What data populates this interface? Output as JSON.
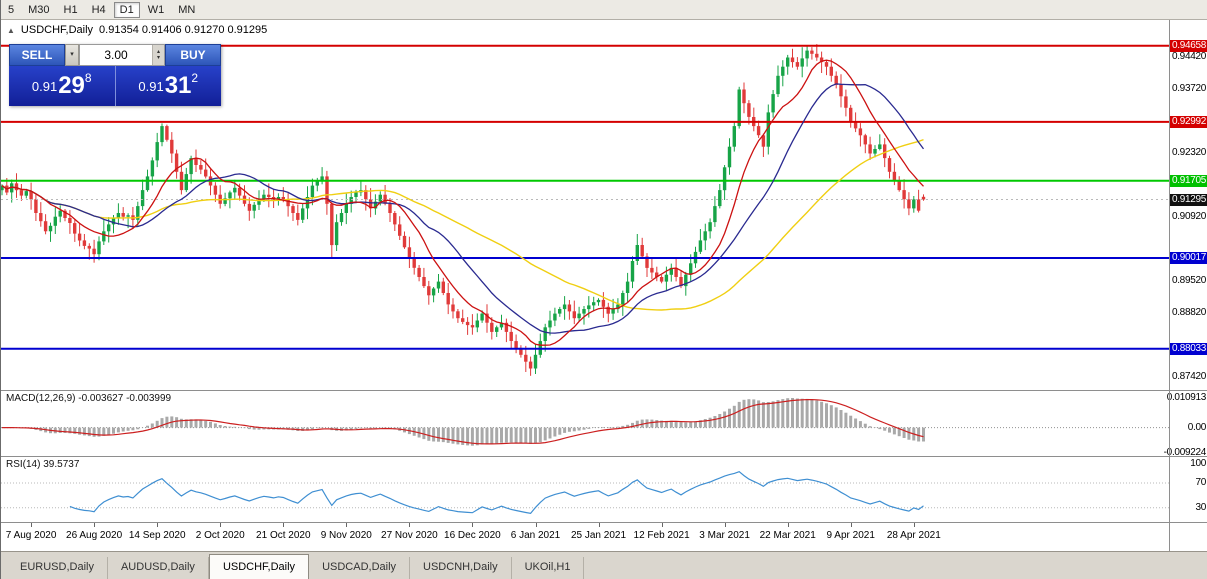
{
  "toolbar": {
    "timeframes": [
      {
        "label": "5",
        "name": "m5",
        "active": false
      },
      {
        "label": "M30",
        "name": "m30",
        "active": false
      },
      {
        "label": "H1",
        "name": "h1",
        "active": false
      },
      {
        "label": "H4",
        "name": "h4",
        "active": false
      },
      {
        "label": "D1",
        "name": "d1",
        "active": true
      },
      {
        "label": "W1",
        "name": "w1",
        "active": false
      },
      {
        "label": "MN",
        "name": "mn",
        "active": false
      }
    ]
  },
  "chart_header": {
    "symbol": "USDCHF,Daily",
    "ohlc": "0.91354 0.91406 0.91270 0.91295"
  },
  "icons": {
    "one_click_toggle": "▲",
    "dropdown": "▾",
    "spinner_up": "▴",
    "spinner_down": "▾"
  },
  "one_click": {
    "sell_label": "SELL",
    "buy_label": "BUY",
    "volume": "3.00",
    "sell_price": {
      "prefix": "0.91",
      "big": "29",
      "sup": "8"
    },
    "buy_price": {
      "prefix": "0.91",
      "big": "31",
      "sup": "2"
    }
  },
  "indicators": {
    "macd": {
      "label": "MACD(12,26,9) -0.003627 -0.003999",
      "axis_labels": [
        {
          "text": "0.010913",
          "value": 0.010913
        },
        {
          "text": "0.00",
          "value": 0
        },
        {
          "text": "-0.009224",
          "value": -0.009224
        }
      ]
    },
    "rsi": {
      "label": "RSI(14) 39.5737",
      "axis_labels": [
        {
          "text": "100",
          "value": 100
        },
        {
          "text": "70",
          "value": 70
        },
        {
          "text": "30",
          "value": 30
        }
      ],
      "levels": [
        70,
        30
      ]
    }
  },
  "y_axis": {
    "ticks": [
      {
        "text": "0.94420",
        "value": 0.9442
      },
      {
        "text": "0.93720",
        "value": 0.9372
      },
      {
        "text": "0.92320",
        "value": 0.9232
      },
      {
        "text": "0.90920",
        "value": 0.9092
      },
      {
        "text": "0.89520",
        "value": 0.8952
      },
      {
        "text": "0.88820",
        "value": 0.8882
      },
      {
        "text": "0.87420",
        "value": 0.8742
      }
    ],
    "badges": [
      {
        "text": "0.94658",
        "value": 0.94658,
        "color": "#d40000",
        "current": false
      },
      {
        "text": "0.92992",
        "value": 0.92992,
        "color": "#d40000",
        "current": false
      },
      {
        "text": "0.91705",
        "value": 0.91705,
        "color": "#00c000",
        "current": false
      },
      {
        "text": "0.91295",
        "value": 0.91295,
        "color": "#111111",
        "current": true
      },
      {
        "text": "0.90017",
        "value": 0.90017,
        "color": "#0000d0",
        "current": false
      },
      {
        "text": "0.88033",
        "value": 0.88033,
        "color": "#0000d0",
        "current": false
      }
    ]
  },
  "x_axis": [
    {
      "text": "7 Aug 2020",
      "bar": 6
    },
    {
      "text": "26 Aug 2020",
      "bar": 19
    },
    {
      "text": "14 Sep 2020",
      "bar": 32
    },
    {
      "text": "2 Oct 2020",
      "bar": 45
    },
    {
      "text": "21 Oct 2020",
      "bar": 58
    },
    {
      "text": "9 Nov 2020",
      "bar": 71
    },
    {
      "text": "27 Nov 2020",
      "bar": 84
    },
    {
      "text": "16 Dec 2020",
      "bar": 97
    },
    {
      "text": "6 Jan 2021",
      "bar": 110
    },
    {
      "text": "25 Jan 2021",
      "bar": 123
    },
    {
      "text": "12 Feb 2021",
      "bar": 136
    },
    {
      "text": "3 Mar 2021",
      "bar": 149
    },
    {
      "text": "22 Mar 2021",
      "bar": 162
    },
    {
      "text": "9 Apr 2021",
      "bar": 175
    },
    {
      "text": "28 Apr 2021",
      "bar": 188
    }
  ],
  "tabs": [
    {
      "label": "EURUSD,Daily",
      "active": false
    },
    {
      "label": "AUDUSD,Daily",
      "active": false
    },
    {
      "label": "USDCHF,Daily",
      "active": true
    },
    {
      "label": "USDCAD,Daily",
      "active": false
    },
    {
      "label": "USDCNH,Daily",
      "active": false
    },
    {
      "label": "UKOil,H1",
      "active": false
    }
  ],
  "chart_data": {
    "type": "candlestick",
    "title": "USDCHF Daily",
    "price_range": [
      0.8713,
      0.9522
    ],
    "current_price": 0.91295,
    "first_open": 0.915,
    "last_ohlc": {
      "open": 0.91354,
      "high": 0.91406,
      "low": 0.9127,
      "close": 0.91295
    },
    "levels": [
      {
        "price": 0.94658,
        "color": "#d40000"
      },
      {
        "price": 0.92992,
        "color": "#d40000"
      },
      {
        "price": 0.91705,
        "color": "#00c800"
      },
      {
        "price": 0.90017,
        "color": "#0000d0"
      },
      {
        "price": 0.88033,
        "color": "#0000d0"
      }
    ],
    "wick_overrides": {
      "33": {
        "high": 0.9296
      },
      "68": {
        "low": 0.9
      },
      "109": {
        "low": 0.8744
      },
      "152": {
        "high": 0.9376
      },
      "166": {
        "high": 0.9465
      }
    },
    "moving_averages": [
      {
        "period": 50,
        "color": "#f0cf12",
        "width": 1.4
      },
      {
        "period": 21,
        "color": "#2a2a90",
        "width": 1.3
      },
      {
        "period": 10,
        "color": "#cc1111",
        "width": 1.3
      }
    ],
    "macd_settings": {
      "fast": 12,
      "slow": 26,
      "signal": 9,
      "peak": 0.0109,
      "range": [
        0.0135,
        -0.0105
      ],
      "histogram_color": "#a9a9a9",
      "signal_color": "#cc2020"
    },
    "rsi_settings": {
      "period": 14,
      "color": "#3f8fd2",
      "level_color": "#b8b8b8"
    },
    "bull_color": "#17a447",
    "bear_color": "#e03a3a",
    "closes": [
      0.916,
      0.9145,
      0.9165,
      0.915,
      0.9138,
      0.9148,
      0.913,
      0.91,
      0.9082,
      0.906,
      0.9072,
      0.9092,
      0.9105,
      0.9089,
      0.9078,
      0.9055,
      0.904,
      0.9028,
      0.9022,
      0.901,
      0.9038,
      0.906,
      0.9075,
      0.9088,
      0.91,
      0.9092,
      0.9095,
      0.9085,
      0.9115,
      0.915,
      0.918,
      0.9215,
      0.9255,
      0.929,
      0.926,
      0.923,
      0.919,
      0.915,
      0.9185,
      0.922,
      0.9205,
      0.9195,
      0.918,
      0.916,
      0.914,
      0.912,
      0.9132,
      0.9145,
      0.9155,
      0.9138,
      0.912,
      0.9105,
      0.9118,
      0.913,
      0.914,
      0.9135,
      0.9128,
      0.9135,
      0.913,
      0.9115,
      0.91,
      0.9085,
      0.911,
      0.9135,
      0.916,
      0.917,
      0.918,
      0.912,
      0.903,
      0.908,
      0.91,
      0.912,
      0.9135,
      0.9145,
      0.915,
      0.913,
      0.911,
      0.9125,
      0.914,
      0.912,
      0.91,
      0.9075,
      0.905,
      0.9025,
      0.9,
      0.898,
      0.896,
      0.894,
      0.892,
      0.8935,
      0.895,
      0.8925,
      0.89,
      0.8885,
      0.887,
      0.8862,
      0.8855,
      0.885,
      0.8865,
      0.888,
      0.886,
      0.884,
      0.885,
      0.886,
      0.884,
      0.882,
      0.8805,
      0.879,
      0.8775,
      0.876,
      0.879,
      0.882,
      0.885,
      0.8865,
      0.888,
      0.889,
      0.89,
      0.8885,
      0.887,
      0.888,
      0.889,
      0.8898,
      0.8905,
      0.891,
      0.8895,
      0.888,
      0.889,
      0.89,
      0.8925,
      0.895,
      0.8995,
      0.903,
      0.9005,
      0.898,
      0.897,
      0.896,
      0.895,
      0.8965,
      0.898,
      0.896,
      0.894,
      0.8965,
      0.899,
      0.9015,
      0.904,
      0.906,
      0.908,
      0.9115,
      0.915,
      0.92,
      0.9245,
      0.929,
      0.937,
      0.934,
      0.931,
      0.929,
      0.927,
      0.9245,
      0.932,
      0.936,
      0.94,
      0.942,
      0.944,
      0.943,
      0.942,
      0.9438,
      0.9455,
      0.9448,
      0.944,
      0.943,
      0.942,
      0.94,
      0.938,
      0.9355,
      0.933,
      0.93,
      0.9285,
      0.927,
      0.925,
      0.923,
      0.924,
      0.925,
      0.922,
      0.919,
      0.917,
      0.915,
      0.913,
      0.911,
      0.913,
      0.9105,
      0.91295
    ]
  }
}
